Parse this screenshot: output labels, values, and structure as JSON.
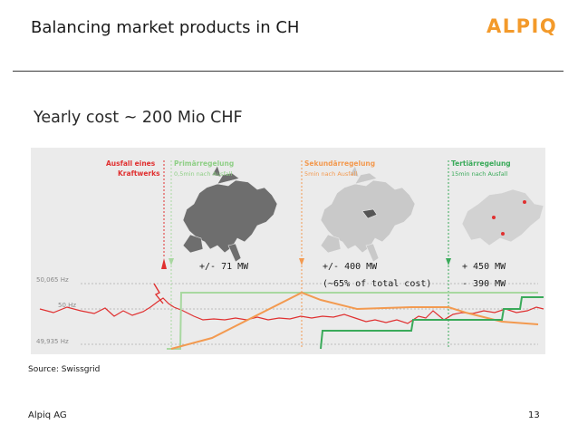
{
  "slide": {
    "title": "Balancing market products in CH",
    "logo_text": "ALPIQ",
    "subtitle": "Yearly cost ~ 200 Mio CHF",
    "source": "Source: Swissgrid",
    "footer_company": "Alpiq AG",
    "page_number": "13"
  },
  "figure": {
    "y_labels": [
      "50,065 Hz",
      "50 Hz",
      "49,935 Hz"
    ],
    "event_title_1": "Ausfall eines",
    "event_title_2": "Kraftwerks",
    "phases": [
      {
        "name": "Primärregelung",
        "timing": "0,5min nach Ausfall",
        "color": "#a8d8a0"
      },
      {
        "name": "Sekundärregelung",
        "timing": "5min nach Ausfall",
        "color": "#f39a50"
      },
      {
        "name": "Tertiärregelung",
        "timing": "15min nach Ausfall",
        "color": "#3aaa5a"
      }
    ],
    "values": {
      "primary": "+/- 71 MW",
      "secondary_1": "+/- 400 MW",
      "secondary_2": "(~65% of total cost)",
      "tertiary_1": "+ 450 MW",
      "tertiary_2": "-  390 MW"
    }
  },
  "colors": {
    "brand_orange": "#f39a2b",
    "event_red": "#e03030",
    "map_gray": "#6e6e6e",
    "map_light": "#c9c9c9"
  }
}
